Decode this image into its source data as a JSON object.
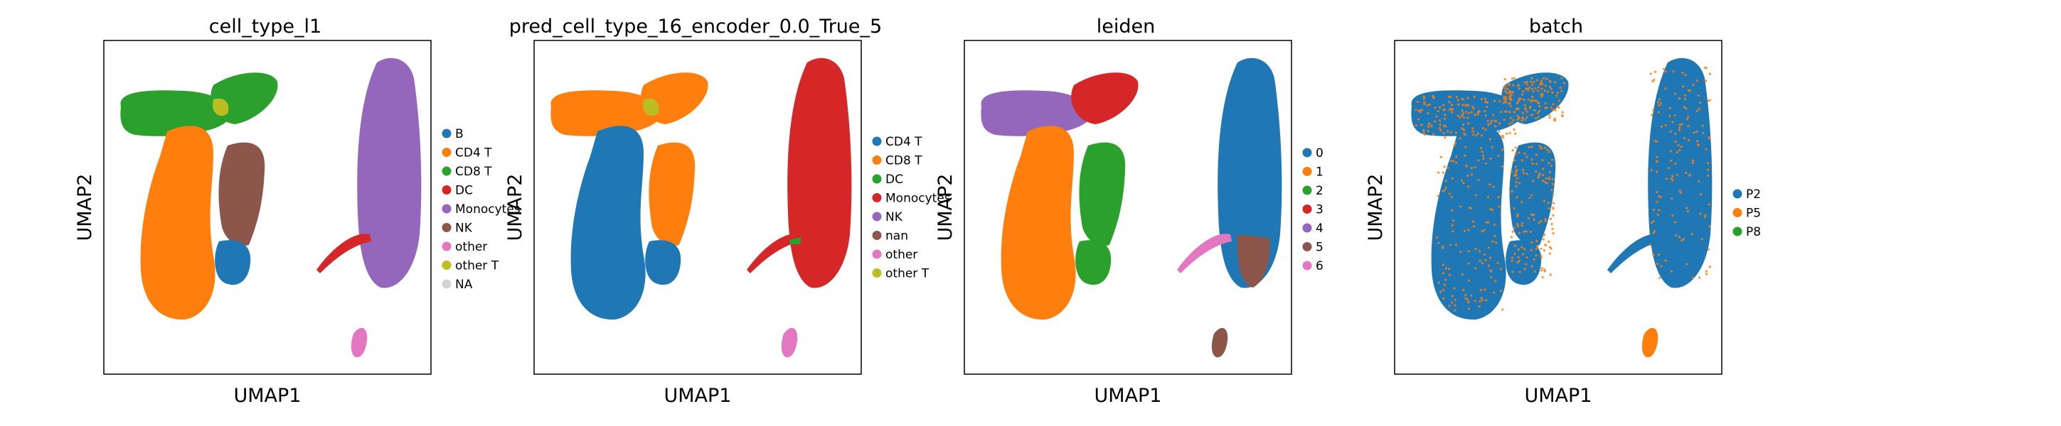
{
  "chart_data": [
    {
      "type": "scatter",
      "title": "cell_type_l1",
      "xlabel": "UMAP1",
      "ylabel": "UMAP2",
      "grid": false,
      "ticks": false,
      "legend_placement": "right",
      "series": [
        {
          "name": "B",
          "color": "#1f77b4"
        },
        {
          "name": "CD4 T",
          "color": "#ff7f0e"
        },
        {
          "name": "CD8 T",
          "color": "#2ca02c"
        },
        {
          "name": "DC",
          "color": "#d62728"
        },
        {
          "name": "Monocytes",
          "color": "#9467bd"
        },
        {
          "name": "NK",
          "color": "#8c564b"
        },
        {
          "name": "other",
          "color": "#e377c2"
        },
        {
          "name": "other T",
          "color": "#bcbd22"
        },
        {
          "name": "NA",
          "color": "#d3d3d3"
        }
      ]
    },
    {
      "type": "scatter",
      "title": "pred_cell_type_16_encoder_0.0_True_5",
      "xlabel": "UMAP1",
      "ylabel": "UMAP2",
      "grid": false,
      "ticks": false,
      "legend_placement": "right",
      "series": [
        {
          "name": "CD4 T",
          "color": "#1f77b4"
        },
        {
          "name": "CD8 T",
          "color": "#ff7f0e"
        },
        {
          "name": "DC",
          "color": "#2ca02c"
        },
        {
          "name": "Monocytes",
          "color": "#d62728"
        },
        {
          "name": "NK",
          "color": "#9467bd"
        },
        {
          "name": "nan",
          "color": "#8c564b"
        },
        {
          "name": "other",
          "color": "#e377c2"
        },
        {
          "name": "other T",
          "color": "#bcbd22"
        }
      ]
    },
    {
      "type": "scatter",
      "title": "leiden",
      "xlabel": "UMAP1",
      "ylabel": "UMAP2",
      "grid": false,
      "ticks": false,
      "legend_placement": "right",
      "series": [
        {
          "name": "0",
          "color": "#1f77b4"
        },
        {
          "name": "1",
          "color": "#ff7f0e"
        },
        {
          "name": "2",
          "color": "#2ca02c"
        },
        {
          "name": "3",
          "color": "#d62728"
        },
        {
          "name": "4",
          "color": "#9467bd"
        },
        {
          "name": "5",
          "color": "#8c564b"
        },
        {
          "name": "6",
          "color": "#e377c2"
        }
      ]
    },
    {
      "type": "scatter",
      "title": "batch",
      "xlabel": "UMAP1",
      "ylabel": "UMAP2",
      "grid": false,
      "ticks": false,
      "legend_placement": "right",
      "series": [
        {
          "name": "P2",
          "color": "#1f77b4"
        },
        {
          "name": "P5",
          "color": "#ff7f0e"
        },
        {
          "name": "P8",
          "color": "#2ca02c"
        }
      ]
    }
  ]
}
